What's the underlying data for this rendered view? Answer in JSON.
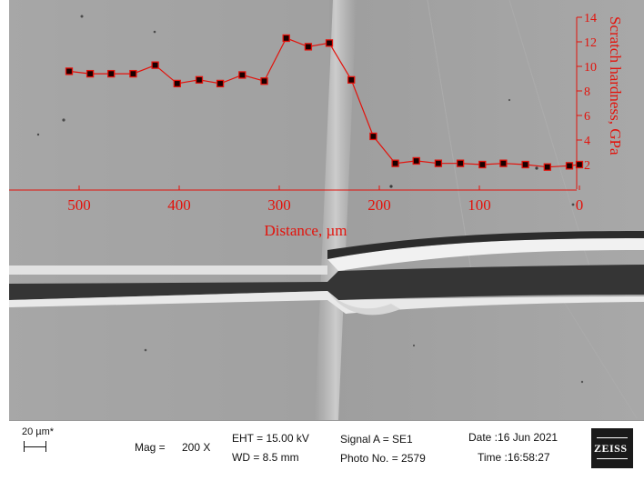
{
  "chart_data": {
    "type": "line",
    "title": "",
    "xlabel": "Distance, µm",
    "ylabel": "Scratch hardness, GPa",
    "xlim": [
      510,
      0
    ],
    "ylim": [
      0,
      14
    ],
    "x_ticks": [
      "500",
      "400",
      "300",
      "200",
      "100",
      "0"
    ],
    "y_ticks": [
      "2",
      "4",
      "6",
      "8",
      "10",
      "12",
      "14"
    ],
    "grid": false,
    "legend": "none",
    "series": [
      {
        "marker": "square",
        "color": "#e3120b",
        "x": [
          510,
          489,
          468,
          446,
          424,
          402,
          380,
          359,
          337,
          315,
          293,
          271,
          250,
          228,
          206,
          184,
          163,
          141,
          119,
          97,
          76,
          54,
          32,
          10,
          0
        ],
        "y": [
          9.6,
          9.4,
          9.4,
          9.4,
          10.1,
          8.6,
          8.9,
          8.6,
          9.3,
          8.8,
          12.3,
          11.6,
          11.9,
          8.9,
          4.3,
          2.1,
          2.3,
          2.1,
          2.1,
          2.0,
          2.1,
          2.0,
          1.8,
          1.9,
          2.0
        ]
      }
    ]
  },
  "sem_info": {
    "scale_bar": "20 µm*",
    "mag_label": "Mag =",
    "mag_value": "200 X",
    "eht": "EHT = 15.00 kV",
    "wd": "WD =  8.5 mm",
    "signal": "Signal A = SE1",
    "photo": "Photo No. = 2579",
    "date": "Date :16 Jun 2021",
    "time": "Time :16:58:27",
    "logo": "ZEISS"
  }
}
